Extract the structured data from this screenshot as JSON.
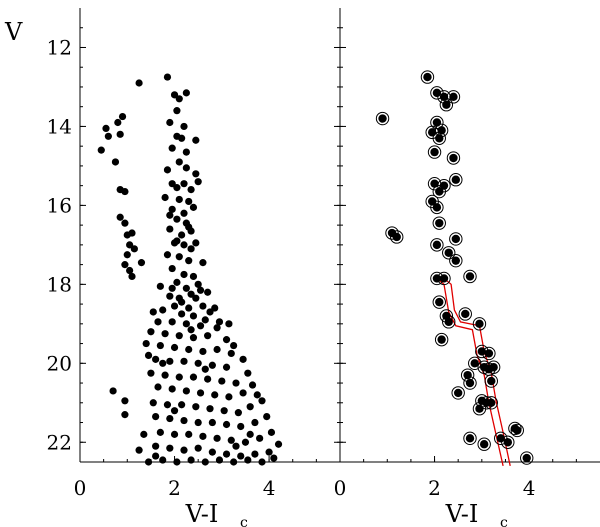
{
  "chart_data": {
    "type": "scatter",
    "ylabel": "V",
    "xlabel_main": "V-I",
    "xlabel_sub": "c",
    "xlim": [
      0,
      5.5
    ],
    "ylim": [
      22.5,
      11
    ],
    "x_ticks": [
      "0",
      "2",
      "4"
    ],
    "y_ticks": [
      "12",
      "14",
      "16",
      "18",
      "20",
      "22"
    ],
    "colors": {
      "points": "#000000",
      "isochrone": "#e00000",
      "frame": "#000000"
    },
    "panels": [
      {
        "name": "all-stars",
        "points": [
          [
            1.25,
            12.9
          ],
          [
            1.85,
            12.75
          ],
          [
            2.0,
            13.2
          ],
          [
            2.1,
            13.3
          ],
          [
            2.05,
            13.6
          ],
          [
            1.9,
            13.9
          ],
          [
            2.2,
            14.0
          ],
          [
            2.05,
            14.25
          ],
          [
            2.15,
            14.3
          ],
          [
            1.95,
            14.55
          ],
          [
            2.25,
            14.65
          ],
          [
            2.1,
            14.9
          ],
          [
            1.85,
            15.1
          ],
          [
            2.45,
            15.2
          ],
          [
            1.95,
            15.45
          ],
          [
            2.05,
            15.55
          ],
          [
            2.2,
            15.45
          ],
          [
            2.35,
            15.6
          ],
          [
            2.5,
            15.4
          ],
          [
            1.8,
            15.8
          ],
          [
            2.1,
            15.85
          ],
          [
            2.3,
            15.9
          ],
          [
            1.95,
            16.1
          ],
          [
            2.2,
            16.2
          ],
          [
            2.4,
            16.05
          ],
          [
            2.05,
            16.35
          ],
          [
            2.25,
            16.45
          ],
          [
            1.9,
            16.6
          ],
          [
            2.15,
            16.75
          ],
          [
            2.35,
            16.65
          ],
          [
            2.0,
            16.95
          ],
          [
            2.2,
            17.0
          ],
          [
            2.45,
            16.95
          ],
          [
            1.85,
            17.25
          ],
          [
            2.1,
            17.3
          ],
          [
            2.3,
            17.4
          ],
          [
            2.6,
            17.45
          ],
          [
            1.95,
            17.6
          ],
          [
            2.2,
            17.75
          ],
          [
            2.4,
            17.8
          ],
          [
            2.05,
            17.95
          ],
          [
            2.5,
            18.0
          ],
          [
            1.7,
            18.05
          ],
          [
            2.25,
            18.1
          ],
          [
            2.7,
            18.2
          ],
          [
            1.9,
            18.3
          ],
          [
            2.1,
            18.35
          ],
          [
            2.45,
            18.35
          ],
          [
            2.0,
            18.55
          ],
          [
            2.3,
            18.6
          ],
          [
            2.6,
            18.55
          ],
          [
            1.55,
            18.7
          ],
          [
            1.75,
            18.65
          ],
          [
            2.15,
            18.75
          ],
          [
            2.4,
            18.8
          ],
          [
            2.85,
            18.6
          ],
          [
            1.65,
            18.95
          ],
          [
            1.95,
            18.95
          ],
          [
            2.25,
            19.0
          ],
          [
            2.55,
            19.05
          ],
          [
            2.9,
            19.1
          ],
          [
            1.5,
            19.2
          ],
          [
            1.8,
            19.25
          ],
          [
            2.1,
            19.3
          ],
          [
            2.4,
            19.35
          ],
          [
            2.7,
            19.3
          ],
          [
            3.1,
            19.4
          ],
          [
            1.4,
            19.5
          ],
          [
            1.7,
            19.55
          ],
          [
            2.0,
            19.6
          ],
          [
            2.3,
            19.65
          ],
          [
            2.6,
            19.7
          ],
          [
            2.9,
            19.65
          ],
          [
            3.2,
            19.75
          ],
          [
            1.6,
            19.9
          ],
          [
            1.9,
            19.95
          ],
          [
            2.2,
            19.95
          ],
          [
            2.5,
            20.0
          ],
          [
            2.8,
            20.05
          ],
          [
            3.1,
            20.1
          ],
          [
            1.5,
            20.25
          ],
          [
            1.8,
            20.3
          ],
          [
            2.1,
            20.35
          ],
          [
            2.4,
            20.35
          ],
          [
            2.7,
            20.4
          ],
          [
            3.0,
            20.45
          ],
          [
            3.3,
            20.5
          ],
          [
            1.65,
            20.6
          ],
          [
            1.95,
            20.65
          ],
          [
            2.25,
            20.7
          ],
          [
            2.55,
            20.75
          ],
          [
            2.85,
            20.8
          ],
          [
            3.15,
            20.85
          ],
          [
            3.45,
            20.75
          ],
          [
            0.7,
            20.7
          ],
          [
            0.95,
            20.95
          ],
          [
            1.55,
            21.0
          ],
          [
            1.85,
            21.05
          ],
          [
            2.15,
            21.05
          ],
          [
            2.45,
            21.1
          ],
          [
            2.75,
            21.15
          ],
          [
            3.05,
            21.2
          ],
          [
            3.35,
            21.25
          ],
          [
            3.6,
            21.1
          ],
          [
            0.95,
            21.3
          ],
          [
            1.6,
            21.35
          ],
          [
            1.9,
            21.4
          ],
          [
            2.2,
            21.45
          ],
          [
            2.5,
            21.5
          ],
          [
            2.8,
            21.5
          ],
          [
            3.1,
            21.55
          ],
          [
            3.4,
            21.6
          ],
          [
            3.7,
            21.5
          ],
          [
            1.7,
            21.75
          ],
          [
            2.0,
            21.8
          ],
          [
            2.3,
            21.8
          ],
          [
            2.6,
            21.85
          ],
          [
            2.9,
            21.9
          ],
          [
            3.2,
            21.95
          ],
          [
            3.5,
            22.0
          ],
          [
            3.8,
            21.9
          ],
          [
            1.6,
            22.1
          ],
          [
            1.9,
            22.15
          ],
          [
            2.2,
            22.2
          ],
          [
            2.5,
            22.15
          ],
          [
            2.8,
            22.25
          ],
          [
            3.1,
            22.3
          ],
          [
            3.4,
            22.35
          ],
          [
            3.7,
            22.3
          ],
          [
            4.0,
            22.25
          ],
          [
            1.45,
            22.5
          ],
          [
            1.75,
            22.45
          ],
          [
            2.05,
            22.5
          ],
          [
            2.35,
            22.45
          ],
          [
            2.65,
            22.5
          ],
          [
            2.95,
            22.45
          ],
          [
            3.25,
            22.5
          ],
          [
            3.55,
            22.45
          ],
          [
            3.85,
            22.5
          ],
          [
            0.45,
            14.6
          ],
          [
            0.55,
            14.05
          ],
          [
            0.6,
            14.25
          ],
          [
            0.75,
            14.9
          ],
          [
            0.8,
            13.9
          ],
          [
            0.85,
            14.2
          ],
          [
            0.9,
            13.75
          ],
          [
            0.85,
            15.6
          ],
          [
            0.95,
            15.65
          ],
          [
            0.85,
            16.3
          ],
          [
            0.95,
            16.45
          ],
          [
            1.0,
            16.75
          ],
          [
            1.1,
            16.7
          ],
          [
            1.05,
            17.0
          ],
          [
            1.15,
            17.1
          ],
          [
            1.0,
            17.25
          ],
          [
            0.95,
            17.5
          ],
          [
            1.05,
            17.65
          ],
          [
            1.1,
            17.8
          ],
          [
            1.3,
            17.45
          ],
          [
            2.15,
            18.45
          ],
          [
            2.35,
            18.25
          ],
          [
            2.55,
            18.15
          ],
          [
            2.75,
            18.7
          ],
          [
            2.95,
            18.95
          ],
          [
            3.15,
            19.0
          ],
          [
            3.25,
            19.55
          ],
          [
            3.45,
            19.9
          ],
          [
            3.55,
            20.25
          ],
          [
            3.65,
            20.55
          ],
          [
            3.85,
            20.95
          ],
          [
            3.95,
            21.35
          ],
          [
            4.05,
            21.75
          ],
          [
            4.2,
            22.05
          ],
          [
            4.1,
            22.4
          ],
          [
            1.75,
            20.0
          ],
          [
            1.45,
            19.8
          ],
          [
            1.35,
            21.8
          ],
          [
            1.25,
            22.2
          ],
          [
            1.6,
            22.35
          ],
          [
            3.75,
            20.8
          ],
          [
            3.6,
            21.8
          ],
          [
            3.3,
            22.1
          ],
          [
            2.0,
            21.2
          ],
          [
            2.65,
            20.15
          ],
          [
            2.35,
            19.15
          ],
          [
            2.65,
            18.9
          ],
          [
            1.95,
            18.1
          ],
          [
            2.35,
            17.1
          ],
          [
            2.05,
            16.9
          ],
          [
            2.3,
            16.55
          ],
          [
            1.9,
            16.25
          ],
          [
            2.25,
            15.05
          ],
          [
            2.45,
            14.35
          ],
          [
            2.25,
            13.15
          ]
        ]
      },
      {
        "name": "selected-members",
        "points": [
          [
            1.85,
            12.75
          ],
          [
            0.9,
            13.8
          ],
          [
            2.05,
            13.15
          ],
          [
            2.2,
            13.25
          ],
          [
            2.4,
            13.25
          ],
          [
            2.25,
            13.45
          ],
          [
            2.05,
            13.9
          ],
          [
            2.15,
            14.1
          ],
          [
            1.95,
            14.15
          ],
          [
            2.1,
            14.3
          ],
          [
            2.0,
            14.65
          ],
          [
            2.4,
            14.8
          ],
          [
            2.45,
            15.35
          ],
          [
            2.0,
            15.45
          ],
          [
            2.2,
            15.5
          ],
          [
            2.1,
            15.65
          ],
          [
            1.95,
            15.9
          ],
          [
            2.05,
            16.05
          ],
          [
            2.1,
            16.45
          ],
          [
            1.1,
            16.7
          ],
          [
            1.2,
            16.8
          ],
          [
            2.45,
            16.85
          ],
          [
            2.05,
            17.0
          ],
          [
            2.3,
            17.2
          ],
          [
            2.45,
            17.4
          ],
          [
            2.75,
            17.8
          ],
          [
            2.05,
            17.85
          ],
          [
            2.2,
            17.85
          ],
          [
            2.1,
            18.45
          ],
          [
            2.25,
            18.8
          ],
          [
            2.3,
            18.95
          ],
          [
            2.65,
            18.75
          ],
          [
            2.95,
            19.0
          ],
          [
            2.15,
            19.4
          ],
          [
            3.0,
            19.7
          ],
          [
            3.15,
            19.75
          ],
          [
            2.85,
            20.0
          ],
          [
            3.05,
            20.1
          ],
          [
            3.15,
            20.15
          ],
          [
            3.25,
            20.1
          ],
          [
            2.7,
            20.3
          ],
          [
            2.75,
            20.5
          ],
          [
            3.2,
            20.45
          ],
          [
            2.5,
            20.75
          ],
          [
            3.0,
            20.95
          ],
          [
            3.1,
            21.0
          ],
          [
            3.2,
            21.0
          ],
          [
            2.95,
            21.15
          ],
          [
            3.7,
            21.65
          ],
          [
            3.75,
            21.7
          ],
          [
            3.4,
            21.9
          ],
          [
            3.55,
            22.0
          ],
          [
            2.75,
            21.9
          ],
          [
            3.05,
            22.05
          ],
          [
            3.95,
            22.4
          ]
        ],
        "isochrone": [
          [
            [
              2.05,
              17.85
            ],
            [
              2.2,
              18.0
            ],
            [
              2.3,
              18.7
            ],
            [
              2.45,
              19.05
            ],
            [
              2.8,
              19.15
            ],
            [
              2.9,
              19.8
            ],
            [
              3.05,
              20.3
            ],
            [
              3.15,
              21.0
            ],
            [
              3.3,
              21.8
            ],
            [
              3.45,
              22.6
            ]
          ],
          [
            [
              2.2,
              17.85
            ],
            [
              2.35,
              18.0
            ],
            [
              2.42,
              18.65
            ],
            [
              2.55,
              18.95
            ],
            [
              2.95,
              19.05
            ],
            [
              3.05,
              19.7
            ],
            [
              3.2,
              20.25
            ],
            [
              3.3,
              20.95
            ],
            [
              3.45,
              21.75
            ],
            [
              3.6,
              22.6
            ]
          ]
        ]
      }
    ]
  }
}
